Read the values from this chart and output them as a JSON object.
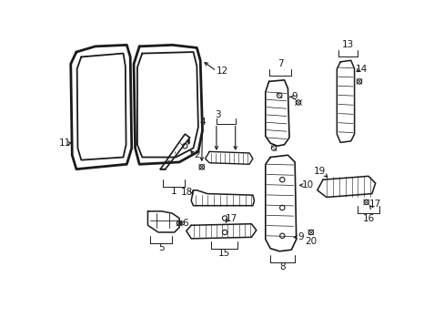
{
  "background_color": "#ffffff",
  "line_color": "#1a1a1a",
  "font_size": 7.5,
  "figsize": [
    4.89,
    3.6
  ],
  "dpi": 100
}
